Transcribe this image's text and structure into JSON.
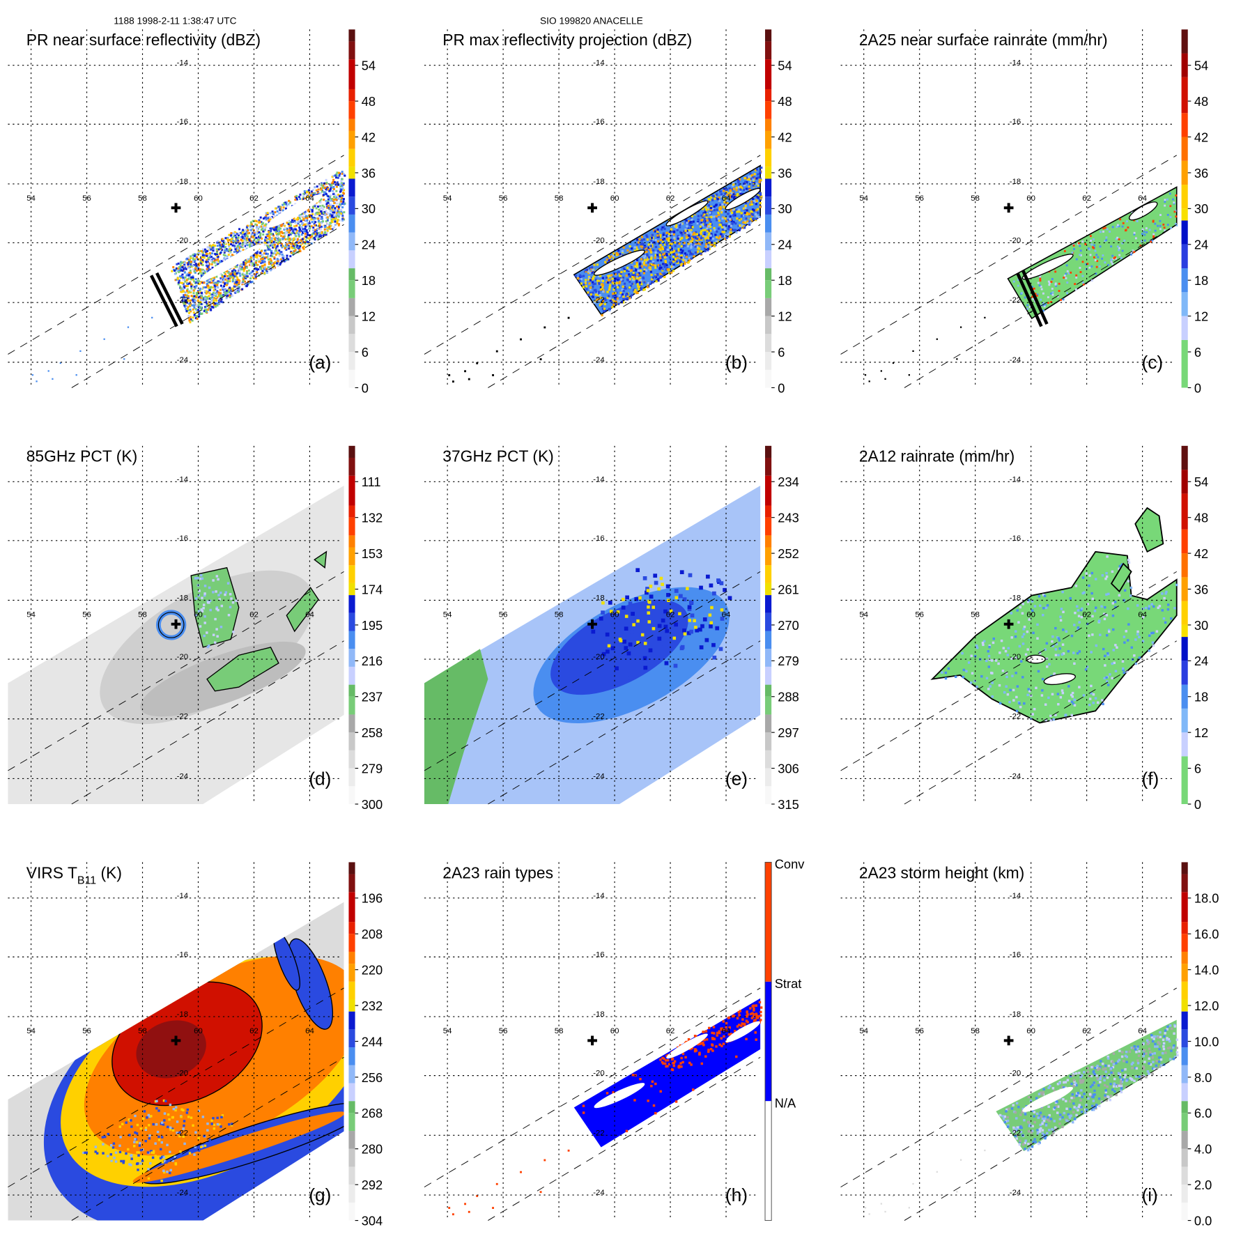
{
  "header": {
    "left": "1188 1998-2-11 1:38:47 UTC",
    "center": "SIO 199820 ANACELLE"
  },
  "map": {
    "lon_labels": [
      "54",
      "56",
      "58",
      "60",
      "62",
      "64"
    ],
    "lat_labels": [
      "-14",
      "-16",
      "-18",
      "-20",
      "-22",
      "-24"
    ]
  },
  "colorscales": {
    "dbz": [
      [
        0,
        3,
        "#f8f8f8"
      ],
      [
        3,
        6,
        "#ececec"
      ],
      [
        6,
        9,
        "#dcdcdc"
      ],
      [
        9,
        12,
        "#c8c8c8"
      ],
      [
        12,
        15,
        "#a8a8a8"
      ],
      [
        15,
        18,
        "#78cc78"
      ],
      [
        18,
        20,
        "#66bb66"
      ],
      [
        20,
        23,
        "#c8d0ff"
      ],
      [
        23,
        26,
        "#90b8f8"
      ],
      [
        26,
        29,
        "#4a8ef0"
      ],
      [
        29,
        32,
        "#2a4ae0"
      ],
      [
        32,
        35,
        "#0a1ad0"
      ],
      [
        35,
        37,
        "#f0e000"
      ],
      [
        37,
        40,
        "#ffd000"
      ],
      [
        40,
        43,
        "#ffa000"
      ],
      [
        43,
        45,
        "#ff8000"
      ],
      [
        45,
        48,
        "#ff4000"
      ],
      [
        48,
        50,
        "#e82000"
      ],
      [
        50,
        55,
        "#c00000"
      ],
      [
        55,
        58,
        "#801010"
      ],
      [
        58,
        60,
        "#5a1010"
      ]
    ],
    "rain": [
      [
        0,
        8,
        "#78d878"
      ],
      [
        8,
        12,
        "#c8d0ff"
      ],
      [
        12,
        16,
        "#80b8f8"
      ],
      [
        16,
        20,
        "#4a8ef0"
      ],
      [
        20,
        24,
        "#2a3ee0"
      ],
      [
        24,
        28,
        "#0010c8"
      ],
      [
        28,
        30,
        "#f8e000"
      ],
      [
        30,
        34,
        "#ffd000"
      ],
      [
        34,
        38,
        "#ffa000"
      ],
      [
        38,
        42,
        "#ff7000"
      ],
      [
        42,
        46,
        "#ff4000"
      ],
      [
        46,
        52,
        "#d01000"
      ],
      [
        52,
        56,
        "#a00000"
      ],
      [
        56,
        60,
        "#601010"
      ]
    ],
    "types": [
      [
        0,
        20,
        "#ffffff"
      ],
      [
        20,
        40,
        "#0000ff"
      ],
      [
        40,
        60,
        "#ff4000"
      ]
    ]
  },
  "panels": [
    {
      "id": "a",
      "title": "PR near surface reflectivity (dBZ)",
      "label": "(a)",
      "scale": "dbz",
      "ticks": [
        "0",
        "6",
        "12",
        "18",
        "24",
        "30",
        "36",
        "42",
        "48",
        "54"
      ]
    },
    {
      "id": "b",
      "title": "PR max reflectivity projection (dBZ)",
      "label": "(b)",
      "scale": "dbz",
      "ticks": [
        "0",
        "6",
        "12",
        "18",
        "24",
        "30",
        "36",
        "42",
        "48",
        "54"
      ]
    },
    {
      "id": "c",
      "title": "2A25 near surface rainrate (mm/hr)",
      "label": "(c)",
      "scale": "rain",
      "ticks": [
        "0",
        "6",
        "12",
        "18",
        "24",
        "30",
        "36",
        "42",
        "48",
        "54"
      ]
    },
    {
      "id": "d",
      "title": "85GHz PCT (K)",
      "label": "(d)",
      "scale": "dbz",
      "ticks": [
        "300",
        "279",
        "258",
        "237",
        "216",
        "195",
        "174",
        "153",
        "132",
        "111"
      ]
    },
    {
      "id": "e",
      "title": "37GHz PCT (K)",
      "label": "(e)",
      "scale": "dbz",
      "ticks": [
        "315",
        "306",
        "297",
        "288",
        "279",
        "270",
        "261",
        "252",
        "243",
        "234"
      ]
    },
    {
      "id": "f",
      "title": "2A12 rainrate (mm/hr)",
      "label": "(f)",
      "scale": "rain",
      "ticks": [
        "0",
        "6",
        "12",
        "18",
        "24",
        "30",
        "36",
        "42",
        "48",
        "54"
      ]
    },
    {
      "id": "g",
      "title": "VIRS T",
      "title_sub": "B11",
      "title_suffix": " (K)",
      "label": "(g)",
      "scale": "dbz",
      "ticks": [
        "304",
        "292",
        "280",
        "268",
        "256",
        "244",
        "232",
        "220",
        "208",
        "196"
      ]
    },
    {
      "id": "h",
      "title": "2A23 rain types",
      "label": "(h)",
      "scale": "types",
      "type_labels": [
        "N/A",
        "Strat",
        "Conv"
      ]
    },
    {
      "id": "i",
      "title": "2A23 storm height (km)",
      "label": "(i)",
      "scale": "dbz",
      "ticks": [
        "0.0",
        "2.0",
        "4.0",
        "6.0",
        "8.0",
        "10.0",
        "12.0",
        "14.0",
        "16.0",
        "18.0"
      ]
    }
  ]
}
